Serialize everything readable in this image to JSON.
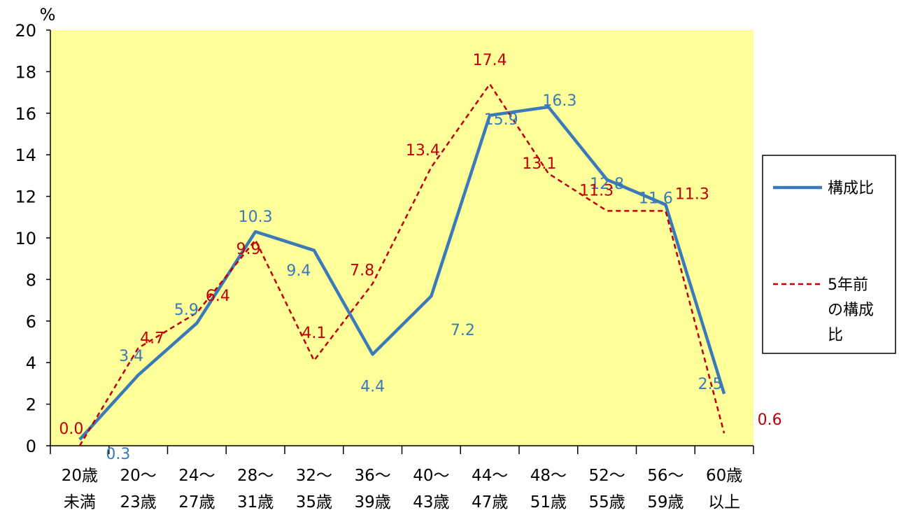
{
  "chart_data": {
    "type": "line",
    "y_unit": "%",
    "ylim": [
      0,
      20
    ],
    "y_ticks": [
      "0",
      "2",
      "4",
      "6",
      "8",
      "10",
      "12",
      "14",
      "16",
      "18",
      "20"
    ],
    "grid": false,
    "legend_position": "right",
    "plot_background": "#ffff99",
    "categories": [
      [
        "20歳",
        "未満"
      ],
      [
        "20～",
        "23歳"
      ],
      [
        "24～",
        "27歳"
      ],
      [
        "28～",
        "31歳"
      ],
      [
        "32～",
        "35歳"
      ],
      [
        "36～",
        "39歳"
      ],
      [
        "40～",
        "43歳"
      ],
      [
        "44～",
        "47歳"
      ],
      [
        "48～",
        "51歳"
      ],
      [
        "52～",
        "55歳"
      ],
      [
        "56～",
        "59歳"
      ],
      [
        "60歳",
        "以上"
      ]
    ],
    "series": [
      {
        "name": "構成比",
        "color": "#3a7ab8",
        "style": "solid",
        "values": [
          0.3,
          3.4,
          5.9,
          10.3,
          9.4,
          4.4,
          7.2,
          15.9,
          16.3,
          12.8,
          11.6,
          2.5
        ],
        "labels": [
          "0.3",
          "3.4",
          "5.9",
          "10.3",
          "9.4",
          "4.4",
          "7.2",
          "15.9",
          "16.3",
          "12.8",
          "11.6",
          "2.5"
        ]
      },
      {
        "name": "5年前の構成比",
        "name_lines": [
          "5年前",
          "の構成",
          "比"
        ],
        "color": "#c00000",
        "style": "dashed",
        "values": [
          0.0,
          4.7,
          6.4,
          9.9,
          4.1,
          7.8,
          13.4,
          17.4,
          13.1,
          11.3,
          11.3,
          0.6
        ],
        "labels": [
          "0.0",
          "4.7",
          "6.4",
          "9.9",
          "4.1",
          "7.8",
          "13.4",
          "17.4",
          "13.1",
          "11.3",
          "11.3",
          "0.6"
        ]
      }
    ]
  }
}
